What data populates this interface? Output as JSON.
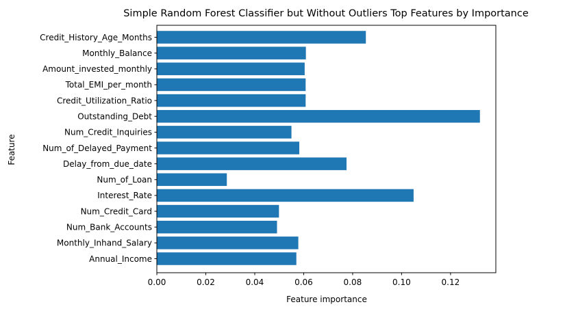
{
  "chart_data": {
    "type": "bar",
    "orientation": "horizontal",
    "title": "Simple Random Forest Classifier but Without Outliers Top Features by Importance",
    "xlabel": "Feature importance",
    "ylabel": "Feature",
    "xlim": [
      0,
      0.1385
    ],
    "xticks": [
      0.0,
      0.02,
      0.04,
      0.06,
      0.08,
      0.1,
      0.12
    ],
    "xtick_labels": [
      "0.00",
      "0.02",
      "0.04",
      "0.06",
      "0.08",
      "0.10",
      "0.12"
    ],
    "bar_color": "#1f77b4",
    "grid": false,
    "categories": [
      "Annual_Income",
      "Monthly_Inhand_Salary",
      "Num_Bank_Accounts",
      "Num_Credit_Card",
      "Interest_Rate",
      "Num_of_Loan",
      "Delay_from_due_date",
      "Num_of_Delayed_Payment",
      "Num_Credit_Inquiries",
      "Outstanding_Debt",
      "Credit_Utilization_Ratio",
      "Total_EMI_per_month",
      "Amount_invested_monthly",
      "Monthly_Balance",
      "Credit_History_Age_Months"
    ],
    "values": [
      0.057,
      0.0578,
      0.0491,
      0.0499,
      0.1049,
      0.0286,
      0.0775,
      0.0582,
      0.055,
      0.132,
      0.0608,
      0.0608,
      0.0604,
      0.0609,
      0.0854
    ]
  }
}
